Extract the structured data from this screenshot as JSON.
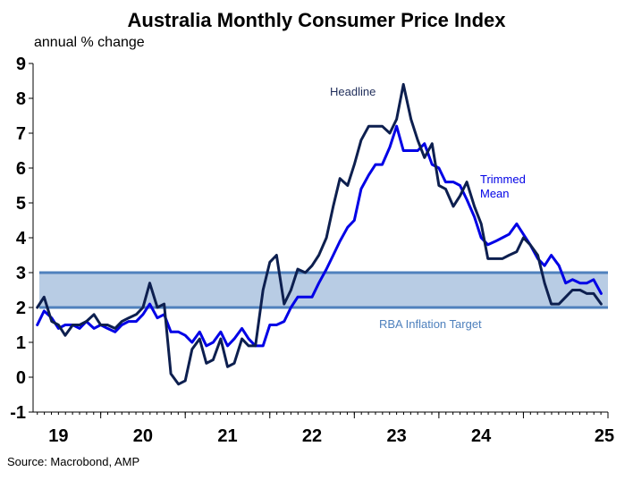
{
  "chart_data": {
    "type": "line",
    "title": "Australia Monthly Consumer Price Index",
    "ylabel": "annual % change",
    "source": "Source: Macrobond, AMP",
    "ylim": [
      -1,
      9
    ],
    "yticks": [
      "9",
      "8",
      "7",
      "6",
      "5",
      "4",
      "3",
      "2",
      "1",
      "0",
      "-1"
    ],
    "xlim": [
      2018.2,
      2025.0
    ],
    "xticks": [
      {
        "label": "19",
        "value": 2019.0
      },
      {
        "label": "20",
        "value": 2020.0
      },
      {
        "label": "21",
        "value": 2021.0
      },
      {
        "label": "22",
        "value": 2022.0
      },
      {
        "label": "23",
        "value": 2023.0
      },
      {
        "label": "24",
        "value": 2024.0
      },
      {
        "label": "25",
        "value": 2025.0
      }
    ],
    "grid": false,
    "target_band": {
      "label": "RBA Inflation Target",
      "low": 2,
      "high": 3,
      "color": "#b8cce4",
      "line_color": "#4f81bd"
    },
    "series": [
      {
        "name": "Headline",
        "color": "#0d1f4f",
        "x": [
          2018.25,
          2018.33,
          2018.42,
          2018.5,
          2018.58,
          2018.67,
          2018.75,
          2018.83,
          2018.92,
          2019.0,
          2019.08,
          2019.17,
          2019.25,
          2019.33,
          2019.42,
          2019.5,
          2019.58,
          2019.67,
          2019.75,
          2019.83,
          2019.92,
          2020.0,
          2020.08,
          2020.17,
          2020.25,
          2020.33,
          2020.42,
          2020.5,
          2020.58,
          2020.67,
          2020.75,
          2020.83,
          2020.92,
          2021.0,
          2021.08,
          2021.17,
          2021.25,
          2021.33,
          2021.42,
          2021.5,
          2021.58,
          2021.67,
          2021.75,
          2021.83,
          2021.92,
          2022.0,
          2022.08,
          2022.17,
          2022.25,
          2022.33,
          2022.42,
          2022.5,
          2022.58,
          2022.67,
          2022.75,
          2022.83,
          2022.92,
          2023.0,
          2023.08,
          2023.17,
          2023.25,
          2023.33,
          2023.42,
          2023.5,
          2023.58,
          2023.67,
          2023.75,
          2023.83,
          2023.92,
          2024.0,
          2024.08,
          2024.17,
          2024.25,
          2024.33,
          2024.42,
          2024.5,
          2024.58,
          2024.67,
          2024.75,
          2024.83,
          2024.92
        ],
        "values": [
          2.0,
          2.3,
          1.6,
          1.5,
          1.2,
          1.5,
          1.5,
          1.6,
          1.8,
          1.5,
          1.5,
          1.4,
          1.6,
          1.7,
          1.8,
          2.0,
          2.7,
          2.0,
          2.1,
          0.1,
          -0.2,
          -0.1,
          0.8,
          1.1,
          0.4,
          0.5,
          1.1,
          0.3,
          0.4,
          1.1,
          0.9,
          0.9,
          2.5,
          3.3,
          3.5,
          2.1,
          2.5,
          3.1,
          3.0,
          3.2,
          3.5,
          4.0,
          4.9,
          5.7,
          5.5,
          6.1,
          6.8,
          7.2,
          7.2,
          7.2,
          7.0,
          7.4,
          8.4,
          7.4,
          6.8,
          6.3,
          6.7,
          5.5,
          5.4,
          4.9,
          5.2,
          5.6,
          4.9,
          4.4,
          3.4,
          3.4,
          3.4,
          3.5,
          3.6,
          4.0,
          3.8,
          3.5,
          2.7,
          2.1,
          2.1,
          2.3,
          2.5,
          2.5,
          2.4,
          2.4,
          2.1
        ]
      },
      {
        "name": "Trimmed Mean",
        "color": "#0000e6",
        "x": [
          2018.25,
          2018.33,
          2018.42,
          2018.5,
          2018.58,
          2018.67,
          2018.75,
          2018.83,
          2018.92,
          2019.0,
          2019.08,
          2019.17,
          2019.25,
          2019.33,
          2019.42,
          2019.5,
          2019.58,
          2019.67,
          2019.75,
          2019.83,
          2019.92,
          2020.0,
          2020.08,
          2020.17,
          2020.25,
          2020.33,
          2020.42,
          2020.5,
          2020.58,
          2020.67,
          2020.75,
          2020.83,
          2020.92,
          2021.0,
          2021.08,
          2021.17,
          2021.25,
          2021.33,
          2021.42,
          2021.5,
          2021.58,
          2021.67,
          2021.75,
          2021.83,
          2021.92,
          2022.0,
          2022.08,
          2022.17,
          2022.25,
          2022.33,
          2022.42,
          2022.5,
          2022.58,
          2022.67,
          2022.75,
          2022.83,
          2022.92,
          2023.0,
          2023.08,
          2023.17,
          2023.25,
          2023.33,
          2023.42,
          2023.5,
          2023.58,
          2023.67,
          2023.75,
          2023.83,
          2023.92,
          2024.0,
          2024.08,
          2024.17,
          2024.25,
          2024.33,
          2024.42,
          2024.5,
          2024.58,
          2024.67,
          2024.75,
          2024.83,
          2024.92
        ],
        "values": [
          1.5,
          1.9,
          1.7,
          1.4,
          1.5,
          1.5,
          1.4,
          1.6,
          1.4,
          1.5,
          1.4,
          1.3,
          1.5,
          1.6,
          1.6,
          1.8,
          2.1,
          1.7,
          1.8,
          1.3,
          1.3,
          1.2,
          1.0,
          1.3,
          0.9,
          1.0,
          1.3,
          0.9,
          1.1,
          1.4,
          1.1,
          0.9,
          0.9,
          1.5,
          1.5,
          1.6,
          2.0,
          2.3,
          2.3,
          2.3,
          2.7,
          3.1,
          3.5,
          3.9,
          4.3,
          4.5,
          5.4,
          5.8,
          6.1,
          6.1,
          6.6,
          7.2,
          6.5,
          6.5,
          6.5,
          6.7,
          6.1,
          6.0,
          5.6,
          5.6,
          5.5,
          5.1,
          4.6,
          4.0,
          3.8,
          3.9,
          4.0,
          4.1,
          4.4,
          4.1,
          3.8,
          3.4,
          3.2,
          3.5,
          3.2,
          2.7,
          2.8,
          2.7,
          2.7,
          2.8,
          2.4
        ]
      }
    ],
    "annotations": [
      {
        "text": "Headline",
        "series": 0
      },
      {
        "text": "Trimmed",
        "series": 1
      },
      {
        "text": "Mean",
        "series": 1
      },
      {
        "text": "RBA Inflation Target",
        "series": null
      }
    ]
  }
}
